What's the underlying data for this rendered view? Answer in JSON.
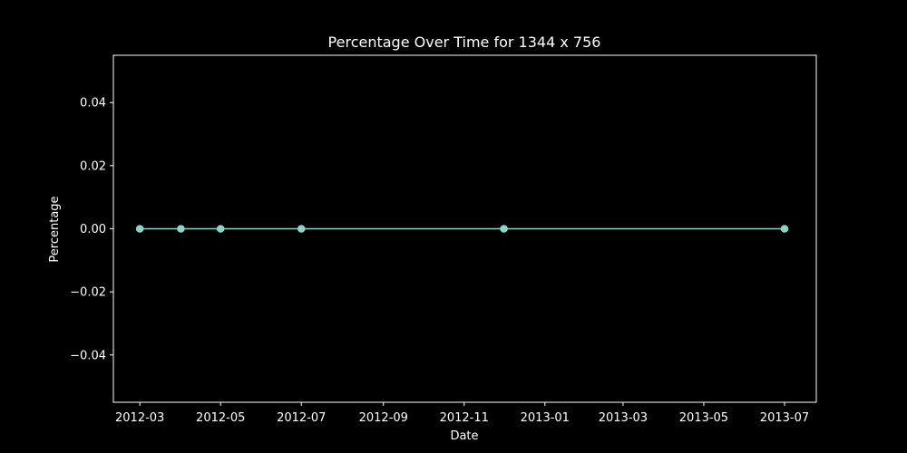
{
  "chart_data": {
    "type": "line",
    "title": "Percentage Over Time for 1344 x 756",
    "xlabel": "Date",
    "ylabel": "Percentage",
    "x_axis_type": "date",
    "xlim": [
      "2012-02-10",
      "2013-07-25"
    ],
    "ylim": [
      -0.055,
      0.055
    ],
    "x_ticks": [
      "2012-03-01",
      "2012-05-01",
      "2012-07-01",
      "2012-09-01",
      "2012-11-01",
      "2013-01-01",
      "2013-03-01",
      "2013-05-01",
      "2013-07-01"
    ],
    "x_tick_labels": [
      "2012-03",
      "2012-05",
      "2012-07",
      "2012-09",
      "2012-11",
      "2013-01",
      "2013-03",
      "2013-05",
      "2013-07"
    ],
    "y_ticks": [
      -0.04,
      -0.02,
      0.0,
      0.02,
      0.04
    ],
    "y_tick_labels": [
      "−0.04",
      "−0.02",
      "0.00",
      "0.02",
      "0.04"
    ],
    "grid": false,
    "legend": "none",
    "series": [
      {
        "color": "#8dd3c7",
        "marker": "circle",
        "points": [
          {
            "x": "2012-03-01",
            "y": 0.0
          },
          {
            "x": "2012-04-01",
            "y": 0.0
          },
          {
            "x": "2012-05-01",
            "y": 0.0
          },
          {
            "x": "2012-07-01",
            "y": 0.0
          },
          {
            "x": "2012-12-01",
            "y": 0.0
          },
          {
            "x": "2013-07-01",
            "y": 0.0
          }
        ]
      }
    ]
  }
}
